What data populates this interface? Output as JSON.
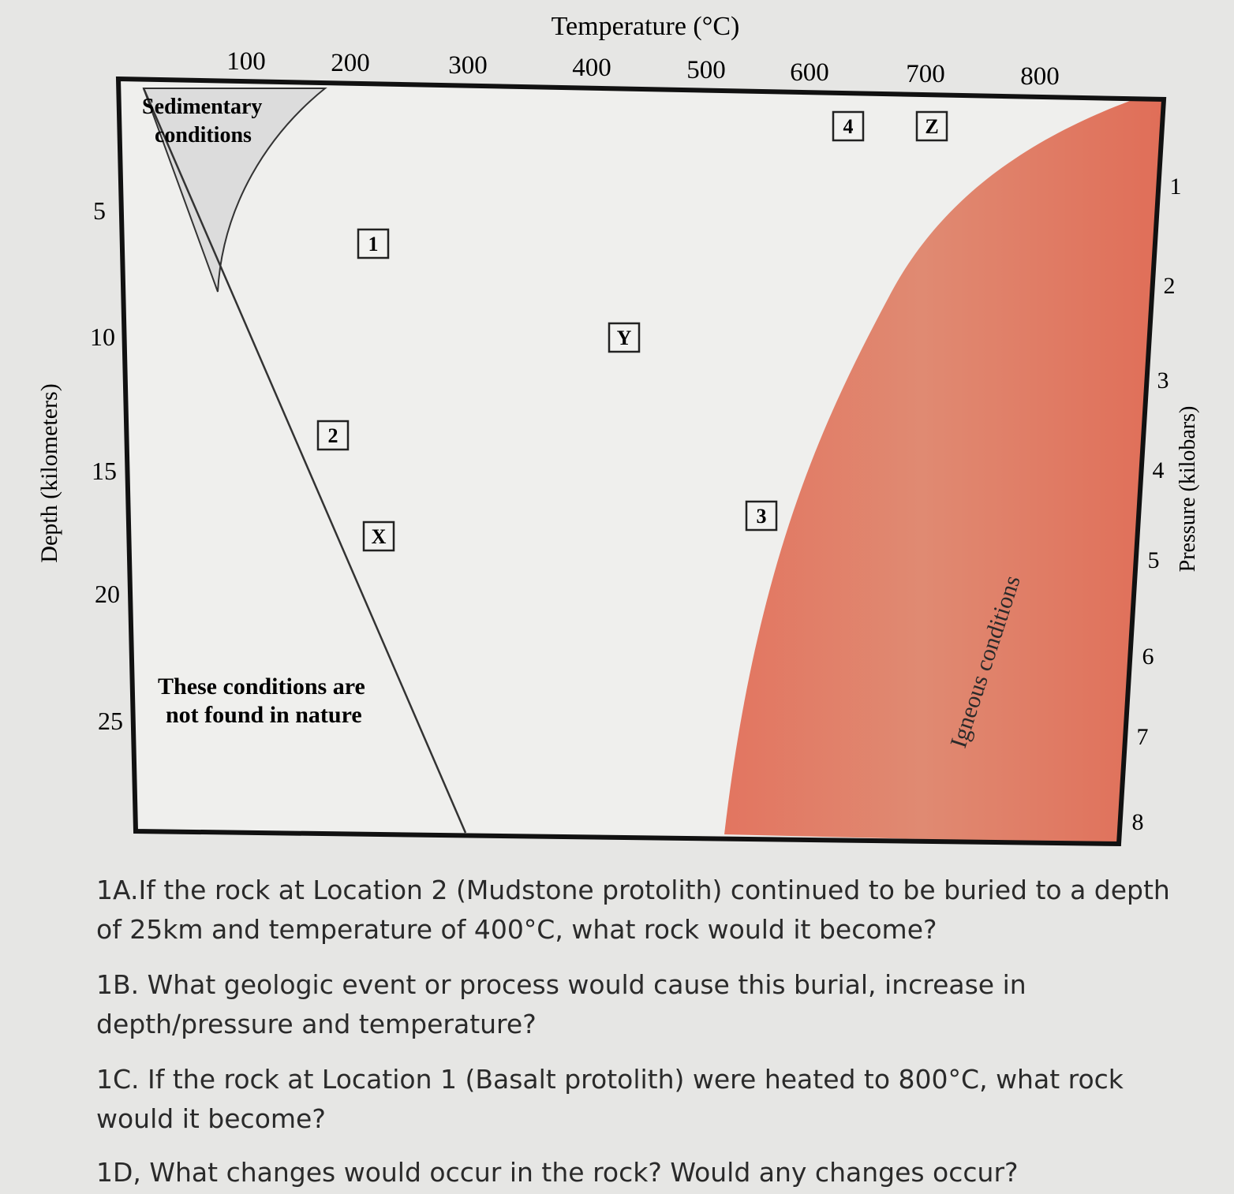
{
  "diagram": {
    "temperature_axis": {
      "title": "Temperature (°C)",
      "ticks": [
        "100",
        "200",
        "300",
        "400",
        "500",
        "600",
        "700",
        "800"
      ]
    },
    "depth_axis": {
      "title": "Depth (kilometers)",
      "ticks": [
        "5",
        "10",
        "15",
        "20",
        "25"
      ]
    },
    "pressure_axis": {
      "title": "Pressure (kilobars)",
      "ticks": [
        "1",
        "2",
        "3",
        "4",
        "5",
        "6",
        "7",
        "8"
      ]
    },
    "regions": {
      "sedimentary_line1": "Sedimentary",
      "sedimentary_line2": "conditions",
      "not_found_line1": "These conditions are",
      "not_found_line2": "not found in nature",
      "igneous": "Igneous conditions"
    },
    "location_labels": [
      "1",
      "2",
      "3",
      "4",
      "X",
      "Y",
      "Z"
    ],
    "colors": {
      "igneous_fill": "#e07a62",
      "sedimentary_fill": "#dcdcdc",
      "plot_background": "#efefed"
    }
  },
  "questions": {
    "q1a": "1A.If the rock at Location 2 (Mudstone protolith) continued to be buried to a depth of 25km and temperature of 400°C, what rock would it become?",
    "q1b": "1B. What geologic event or process would cause this burial, increase in depth/pressure and temperature?",
    "q1c": "1C. If the rock at Location 1 (Basalt protolith) were heated to 800°C, what rock would it become?",
    "q1d": "1D, What changes would occur in the rock? Would any changes occur?"
  }
}
